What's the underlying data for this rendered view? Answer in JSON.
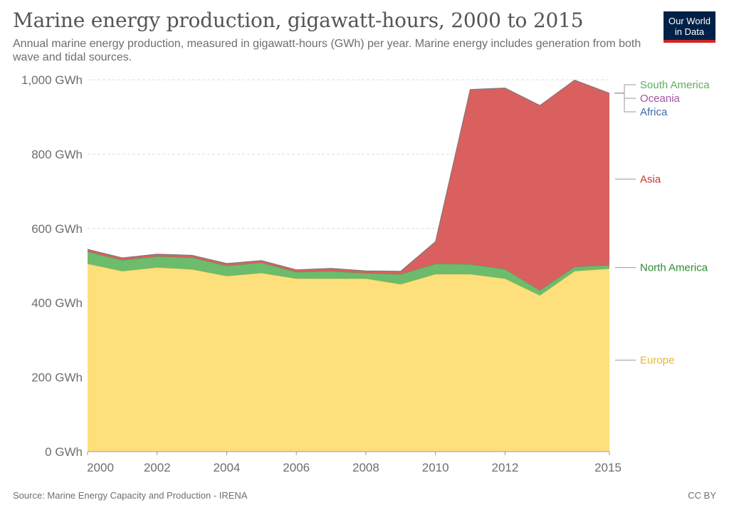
{
  "header": {
    "title": "Marine energy production, gigawatt-hours, 2000 to 2015",
    "subtitle": "Annual marine energy production, measured in gigawatt-hours (GWh) per year. Marine energy includes generation from both wave and tidal sources."
  },
  "logo": {
    "line1": "Our World",
    "line2": "in Data",
    "bg_color": "#002147",
    "accent_color": "#ce261e"
  },
  "footer": {
    "source": "Source: Marine Energy Capacity and Production - IRENA",
    "license": "CC BY"
  },
  "chart_data": {
    "type": "area",
    "stacked": true,
    "x": [
      2000,
      2001,
      2002,
      2003,
      2004,
      2005,
      2006,
      2007,
      2008,
      2009,
      2010,
      2011,
      2012,
      2013,
      2014,
      2015
    ],
    "x_ticks": [
      2000,
      2002,
      2004,
      2006,
      2008,
      2010,
      2012,
      2015
    ],
    "ylim": [
      0,
      1000
    ],
    "y_ticks": [
      0,
      200,
      400,
      600,
      800,
      1000
    ],
    "y_tick_labels": [
      "0 GWh",
      "200 GWh",
      "400 GWh",
      "600 GWh",
      "800 GWh",
      "1,000 GWh"
    ],
    "grid": "horizontal dashed",
    "legend": "right, labels at series ends",
    "series": [
      {
        "name": "Europe",
        "color": "#fde07b",
        "values": [
          505,
          485,
          495,
          490,
          472,
          480,
          465,
          465,
          465,
          450,
          477,
          477,
          465,
          420,
          485,
          492
        ]
      },
      {
        "name": "North America",
        "color": "#6dbb6d",
        "values": [
          33,
          30,
          30,
          32,
          28,
          28,
          18,
          20,
          15,
          27,
          28,
          27,
          26,
          14,
          12,
          10
        ]
      },
      {
        "name": "Asia",
        "color": "#d9605f",
        "values": [
          6,
          6,
          6,
          6,
          6,
          6,
          6,
          8,
          6,
          8,
          60,
          470,
          487,
          497,
          502,
          462
        ]
      },
      {
        "name": "Africa",
        "color": "#3c6aa8",
        "values": [
          0,
          0,
          0,
          0,
          0,
          0,
          0,
          0,
          0,
          0,
          0,
          0,
          0,
          0,
          0,
          0
        ]
      },
      {
        "name": "Oceania",
        "color": "#a451a4",
        "values": [
          0,
          0,
          0,
          0,
          0,
          0,
          0,
          0,
          0,
          0,
          0,
          0,
          0,
          0,
          0,
          0
        ]
      },
      {
        "name": "South America",
        "color": "#5cb85c",
        "values": [
          0,
          0,
          0,
          0,
          0,
          0,
          0,
          0,
          0,
          0,
          0,
          0,
          0,
          0,
          0,
          0
        ]
      }
    ],
    "label_colors": {
      "South America": "#5fae5f",
      "Oceania": "#a451a4",
      "Africa": "#3c6aa8",
      "Asia": "#c0392b",
      "North America": "#2e8b2e",
      "Europe": "#e0b83a"
    }
  }
}
